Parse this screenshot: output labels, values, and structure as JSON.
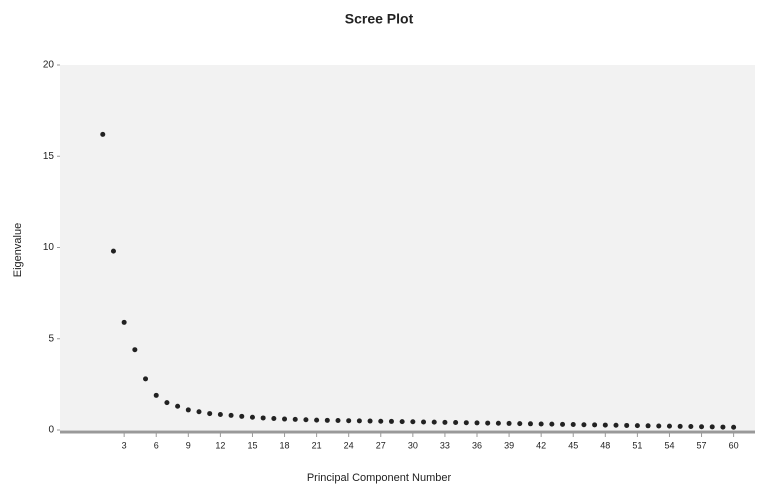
{
  "chart_data": {
    "type": "scatter",
    "title": "Scree Plot",
    "x_label": "Principal Component Number",
    "y_label": "Eigenvalue",
    "color": "#222222",
    "background": "#f2f2f2",
    "grid": false,
    "xlim": [
      -3,
      62
    ],
    "ylim": [
      0,
      20
    ],
    "xticks": [
      3,
      6,
      9,
      12,
      15,
      18,
      21,
      24,
      27,
      30,
      33,
      36,
      39,
      42,
      45,
      48,
      51,
      54,
      57,
      60
    ],
    "yticks": [
      0,
      5,
      10,
      15,
      20
    ],
    "x": [
      1,
      2,
      3,
      4,
      5,
      6,
      7,
      8,
      9,
      10,
      11,
      12,
      13,
      14,
      15,
      16,
      17,
      18,
      19,
      20,
      21,
      22,
      23,
      24,
      25,
      26,
      27,
      28,
      29,
      30,
      31,
      32,
      33,
      34,
      35,
      36,
      37,
      38,
      39,
      40,
      41,
      42,
      43,
      44,
      45,
      46,
      47,
      48,
      49,
      50,
      51,
      52,
      53,
      54,
      55,
      56,
      57,
      58,
      59,
      60
    ],
    "values": [
      16.2,
      9.8,
      5.9,
      4.4,
      2.8,
      1.9,
      1.5,
      1.3,
      1.1,
      1.0,
      0.9,
      0.85,
      0.8,
      0.75,
      0.7,
      0.66,
      0.63,
      0.6,
      0.58,
      0.56,
      0.54,
      0.53,
      0.52,
      0.51,
      0.5,
      0.49,
      0.48,
      0.47,
      0.46,
      0.45,
      0.44,
      0.43,
      0.42,
      0.41,
      0.4,
      0.39,
      0.38,
      0.37,
      0.36,
      0.35,
      0.34,
      0.33,
      0.32,
      0.31,
      0.3,
      0.29,
      0.28,
      0.27,
      0.26,
      0.25,
      0.24,
      0.23,
      0.22,
      0.21,
      0.2,
      0.19,
      0.18,
      0.17,
      0.16,
      0.15
    ]
  }
}
